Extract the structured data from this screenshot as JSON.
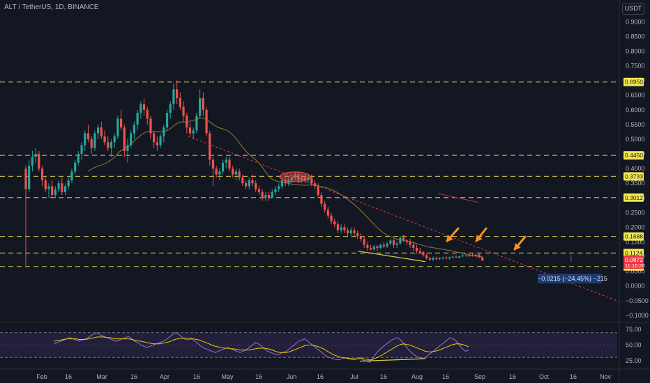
{
  "header": {
    "title": "ALT / TetherUS, 1D, BINANCE",
    "currency_button": "USDT"
  },
  "colors": {
    "background": "#131722",
    "up": "#26a69a",
    "down": "#ef5350",
    "level_line": "#b8b04a",
    "level_label_bg": "#f5e94f",
    "trendline": "#e03b5a",
    "ma": "#8a7d3a",
    "rsi": "#9575cd",
    "rsi_ma": "#f0c800",
    "rsi_band": "#2a2446",
    "arrow": "#f7931a",
    "support": "#e8c94a"
  },
  "icons": {
    "arrows": "orange-arrow-icon"
  },
  "chart_data": [
    {
      "type": "candlestick",
      "title": "ALT / TetherUS, 1D, BINANCE",
      "x_ticks": [
        "Feb",
        "16",
        "Mar",
        "16",
        "Apr",
        "16",
        "May",
        "16",
        "Jun",
        "16",
        "Jul",
        "16",
        "Aug",
        "16",
        "Sep",
        "16",
        "Oct",
        "16",
        "Nov"
      ],
      "y_ticks": [
        "0.9000",
        "0.8500",
        "0.8000",
        "0.7500",
        "0.7000",
        "0.6500",
        "0.6000",
        "0.5500",
        "0.5000",
        "0.4500",
        "0.4000",
        "0.3500",
        "0.3000",
        "0.2500",
        "0.2000",
        "0.1500",
        "0.1000",
        "0.0500",
        "0.0000",
        "−0.0500",
        "−0.1000"
      ],
      "ylim": [
        -0.105,
        0.915
      ],
      "grid": false,
      "levels": [
        0.695,
        0.445,
        0.3733,
        0.3012,
        0.1688,
        0.1124,
        0.0665
      ],
      "level_labels": [
        "0.6950",
        "0.4450",
        "0.3733",
        "0.3012",
        "0.1688",
        "0.1124",
        "0.0665"
      ],
      "current_price_label": "0.0872",
      "countdown_label": "11:16:20",
      "measure_label": "−0.0215 (−24.45%) −215",
      "ohlc": [
        [
          0.4,
          0.41,
          0.07,
          0.33
        ],
        [
          0.33,
          0.43,
          0.32,
          0.41
        ],
        [
          0.41,
          0.46,
          0.39,
          0.44
        ],
        [
          0.44,
          0.47,
          0.42,
          0.45
        ],
        [
          0.45,
          0.46,
          0.39,
          0.4
        ],
        [
          0.4,
          0.41,
          0.34,
          0.36
        ],
        [
          0.36,
          0.37,
          0.32,
          0.33
        ],
        [
          0.33,
          0.35,
          0.3,
          0.34
        ],
        [
          0.34,
          0.36,
          0.3,
          0.31
        ],
        [
          0.31,
          0.34,
          0.3,
          0.33
        ],
        [
          0.33,
          0.36,
          0.32,
          0.35
        ],
        [
          0.35,
          0.37,
          0.31,
          0.32
        ],
        [
          0.32,
          0.35,
          0.31,
          0.34
        ],
        [
          0.34,
          0.37,
          0.33,
          0.36
        ],
        [
          0.36,
          0.4,
          0.35,
          0.39
        ],
        [
          0.39,
          0.43,
          0.38,
          0.42
        ],
        [
          0.42,
          0.46,
          0.41,
          0.45
        ],
        [
          0.45,
          0.49,
          0.43,
          0.48
        ],
        [
          0.48,
          0.53,
          0.46,
          0.52
        ],
        [
          0.52,
          0.55,
          0.49,
          0.5
        ],
        [
          0.5,
          0.51,
          0.45,
          0.47
        ],
        [
          0.47,
          0.53,
          0.46,
          0.52
        ],
        [
          0.52,
          0.55,
          0.5,
          0.54
        ],
        [
          0.54,
          0.56,
          0.5,
          0.51
        ],
        [
          0.51,
          0.53,
          0.48,
          0.49
        ],
        [
          0.49,
          0.51,
          0.46,
          0.47
        ],
        [
          0.47,
          0.5,
          0.44,
          0.49
        ],
        [
          0.49,
          0.52,
          0.47,
          0.51
        ],
        [
          0.51,
          0.58,
          0.5,
          0.57
        ],
        [
          0.57,
          0.6,
          0.53,
          0.54
        ],
        [
          0.54,
          0.55,
          0.44,
          0.46
        ],
        [
          0.46,
          0.5,
          0.42,
          0.48
        ],
        [
          0.48,
          0.53,
          0.47,
          0.52
        ],
        [
          0.52,
          0.56,
          0.5,
          0.55
        ],
        [
          0.55,
          0.6,
          0.53,
          0.59
        ],
        [
          0.59,
          0.63,
          0.57,
          0.62
        ],
        [
          0.62,
          0.64,
          0.58,
          0.6
        ],
        [
          0.6,
          0.61,
          0.55,
          0.57
        ],
        [
          0.57,
          0.58,
          0.5,
          0.52
        ],
        [
          0.52,
          0.53,
          0.47,
          0.49
        ],
        [
          0.49,
          0.51,
          0.46,
          0.48
        ],
        [
          0.48,
          0.52,
          0.47,
          0.51
        ],
        [
          0.51,
          0.55,
          0.49,
          0.54
        ],
        [
          0.54,
          0.6,
          0.53,
          0.59
        ],
        [
          0.59,
          0.63,
          0.57,
          0.62
        ],
        [
          0.62,
          0.69,
          0.6,
          0.67
        ],
        [
          0.67,
          0.7,
          0.62,
          0.64
        ],
        [
          0.64,
          0.66,
          0.6,
          0.61
        ],
        [
          0.61,
          0.63,
          0.56,
          0.58
        ],
        [
          0.58,
          0.59,
          0.52,
          0.54
        ],
        [
          0.54,
          0.56,
          0.51,
          0.52
        ],
        [
          0.52,
          0.54,
          0.5,
          0.53
        ],
        [
          0.53,
          0.59,
          0.52,
          0.58
        ],
        [
          0.58,
          0.67,
          0.57,
          0.64
        ],
        [
          0.64,
          0.66,
          0.58,
          0.6
        ],
        [
          0.6,
          0.61,
          0.51,
          0.52
        ],
        [
          0.52,
          0.53,
          0.41,
          0.43
        ],
        [
          0.43,
          0.44,
          0.34,
          0.4
        ],
        [
          0.4,
          0.41,
          0.37,
          0.38
        ],
        [
          0.38,
          0.4,
          0.36,
          0.39
        ],
        [
          0.39,
          0.43,
          0.38,
          0.42
        ],
        [
          0.42,
          0.44,
          0.4,
          0.43
        ],
        [
          0.43,
          0.44,
          0.39,
          0.4
        ],
        [
          0.4,
          0.41,
          0.37,
          0.38
        ],
        [
          0.38,
          0.4,
          0.36,
          0.39
        ],
        [
          0.39,
          0.4,
          0.36,
          0.37
        ],
        [
          0.37,
          0.38,
          0.34,
          0.35
        ],
        [
          0.35,
          0.36,
          0.33,
          0.34
        ],
        [
          0.34,
          0.37,
          0.33,
          0.36
        ],
        [
          0.36,
          0.38,
          0.34,
          0.35
        ],
        [
          0.35,
          0.36,
          0.32,
          0.33
        ],
        [
          0.33,
          0.34,
          0.31,
          0.32
        ],
        [
          0.32,
          0.33,
          0.29,
          0.3
        ],
        [
          0.3,
          0.32,
          0.29,
          0.31
        ],
        [
          0.31,
          0.32,
          0.29,
          0.3
        ],
        [
          0.3,
          0.33,
          0.3,
          0.32
        ],
        [
          0.32,
          0.34,
          0.31,
          0.33
        ],
        [
          0.33,
          0.35,
          0.32,
          0.34
        ],
        [
          0.34,
          0.37,
          0.33,
          0.36
        ],
        [
          0.36,
          0.38,
          0.34,
          0.35
        ],
        [
          0.35,
          0.37,
          0.34,
          0.36
        ],
        [
          0.36,
          0.38,
          0.35,
          0.37
        ],
        [
          0.37,
          0.39,
          0.36,
          0.38
        ],
        [
          0.38,
          0.39,
          0.35,
          0.36
        ],
        [
          0.36,
          0.38,
          0.35,
          0.37
        ],
        [
          0.37,
          0.38,
          0.35,
          0.36
        ],
        [
          0.36,
          0.38,
          0.35,
          0.37
        ],
        [
          0.37,
          0.38,
          0.34,
          0.35
        ],
        [
          0.35,
          0.36,
          0.33,
          0.34
        ],
        [
          0.34,
          0.35,
          0.3,
          0.31
        ],
        [
          0.31,
          0.32,
          0.27,
          0.28
        ],
        [
          0.28,
          0.29,
          0.25,
          0.26
        ],
        [
          0.26,
          0.27,
          0.23,
          0.24
        ],
        [
          0.24,
          0.25,
          0.21,
          0.22
        ],
        [
          0.22,
          0.23,
          0.2,
          0.21
        ],
        [
          0.21,
          0.22,
          0.18,
          0.19
        ],
        [
          0.19,
          0.21,
          0.18,
          0.2
        ],
        [
          0.2,
          0.21,
          0.18,
          0.19
        ],
        [
          0.19,
          0.2,
          0.17,
          0.18
        ],
        [
          0.18,
          0.2,
          0.17,
          0.19
        ],
        [
          0.19,
          0.2,
          0.17,
          0.18
        ],
        [
          0.18,
          0.19,
          0.16,
          0.17
        ],
        [
          0.17,
          0.18,
          0.15,
          0.16
        ],
        [
          0.16,
          0.17,
          0.13,
          0.14
        ],
        [
          0.14,
          0.15,
          0.12,
          0.13
        ],
        [
          0.13,
          0.14,
          0.12,
          0.125
        ],
        [
          0.125,
          0.14,
          0.12,
          0.135
        ],
        [
          0.135,
          0.14,
          0.12,
          0.13
        ],
        [
          0.13,
          0.145,
          0.125,
          0.14
        ],
        [
          0.14,
          0.15,
          0.13,
          0.135
        ],
        [
          0.135,
          0.15,
          0.13,
          0.145
        ],
        [
          0.145,
          0.16,
          0.14,
          0.155
        ],
        [
          0.155,
          0.16,
          0.13,
          0.14
        ],
        [
          0.14,
          0.15,
          0.13,
          0.145
        ],
        [
          0.145,
          0.17,
          0.14,
          0.165
        ],
        [
          0.165,
          0.175,
          0.15,
          0.155
        ],
        [
          0.155,
          0.16,
          0.14,
          0.15
        ],
        [
          0.15,
          0.16,
          0.13,
          0.14
        ],
        [
          0.14,
          0.15,
          0.12,
          0.13
        ],
        [
          0.13,
          0.14,
          0.11,
          0.12
        ],
        [
          0.12,
          0.13,
          0.11,
          0.115
        ],
        [
          0.115,
          0.12,
          0.1,
          0.105
        ],
        [
          0.105,
          0.11,
          0.09,
          0.095
        ],
        [
          0.095,
          0.1,
          0.085,
          0.09
        ],
        [
          0.09,
          0.1,
          0.085,
          0.095
        ],
        [
          0.095,
          0.1,
          0.088,
          0.092
        ],
        [
          0.092,
          0.098,
          0.088,
          0.095
        ],
        [
          0.095,
          0.1,
          0.09,
          0.097
        ],
        [
          0.097,
          0.102,
          0.092,
          0.094
        ],
        [
          0.094,
          0.1,
          0.09,
          0.098
        ],
        [
          0.098,
          0.104,
          0.094,
          0.1
        ],
        [
          0.1,
          0.105,
          0.095,
          0.097
        ],
        [
          0.097,
          0.103,
          0.094,
          0.101
        ],
        [
          0.101,
          0.108,
          0.098,
          0.104
        ],
        [
          0.104,
          0.11,
          0.1,
          0.102
        ],
        [
          0.102,
          0.108,
          0.099,
          0.106
        ],
        [
          0.106,
          0.114,
          0.1,
          0.103
        ],
        [
          0.103,
          0.11,
          0.098,
          0.107
        ],
        [
          0.107,
          0.112,
          0.095,
          0.098
        ],
        [
          0.098,
          0.1,
          0.085,
          0.087
        ]
      ]
    },
    {
      "type": "line",
      "title": "",
      "y_ticks": [
        "75.00",
        "50.00",
        "25.00"
      ],
      "ylim": [
        18,
        82
      ],
      "band": [
        30,
        70
      ],
      "series": [
        {
          "values": [
            52,
            54,
            56,
            58,
            60,
            62,
            60,
            58,
            56,
            58,
            60,
            62,
            66,
            68,
            70,
            66,
            64,
            62,
            60,
            58,
            56,
            58,
            60,
            62,
            64,
            60,
            56,
            54,
            50,
            48,
            46,
            48,
            50,
            52,
            54,
            56,
            58,
            62,
            66,
            70,
            68,
            64,
            60,
            58,
            60,
            58,
            54,
            50,
            46,
            44,
            42,
            40,
            38,
            40,
            42,
            44,
            46,
            44,
            42,
            40,
            38,
            40,
            42,
            46,
            50,
            54,
            52,
            48,
            44,
            40,
            38,
            36,
            34,
            36,
            38,
            40,
            44,
            48,
            52,
            56,
            58,
            60,
            56,
            52,
            48,
            44,
            40,
            36,
            32,
            30,
            28,
            27,
            26,
            28,
            30,
            28,
            27,
            26,
            28,
            30,
            26,
            24,
            22,
            28,
            36,
            42,
            46,
            50,
            54,
            58,
            60,
            62,
            58,
            52,
            46,
            40,
            36,
            32,
            30,
            28,
            30,
            34,
            38,
            42,
            46,
            50,
            54,
            58,
            62,
            60,
            56,
            50,
            44,
            40,
            42
          ]
        },
        {
          "values": [
            56,
            57,
            58,
            59,
            60,
            60,
            60,
            60,
            59,
            59,
            59,
            60,
            61,
            62,
            63,
            63,
            63,
            62,
            62,
            61,
            60,
            60,
            60,
            60,
            60,
            59,
            58,
            57,
            56,
            55,
            54,
            53,
            52,
            52,
            52,
            53,
            54,
            55,
            57,
            59,
            60,
            61,
            61,
            61,
            61,
            60,
            59,
            58,
            56,
            54,
            52,
            50,
            48,
            47,
            46,
            45,
            45,
            44,
            44,
            43,
            42,
            42,
            42,
            42,
            43,
            44,
            45,
            45,
            45,
            44,
            43,
            41,
            39,
            38,
            38,
            38,
            39,
            41,
            43,
            45,
            47,
            49,
            50,
            50,
            49,
            48,
            46,
            44,
            41,
            38,
            35,
            33,
            31,
            30,
            29,
            29,
            28,
            28,
            28,
            28,
            28,
            27,
            26,
            27,
            29,
            31,
            34,
            37,
            40,
            43,
            46,
            49,
            51,
            52,
            51,
            50,
            48,
            46,
            44,
            42,
            40,
            39,
            39,
            40,
            41,
            43,
            45,
            47,
            49,
            51,
            52,
            52,
            51,
            49,
            47
          ]
        }
      ],
      "x_ticks": [
        "Feb",
        "16",
        "Mar",
        "16",
        "Apr",
        "16",
        "May",
        "16",
        "Jun",
        "16",
        "Jul",
        "16",
        "Aug",
        "16",
        "Sep",
        "16",
        "Oct",
        "16",
        "Nov"
      ]
    }
  ]
}
